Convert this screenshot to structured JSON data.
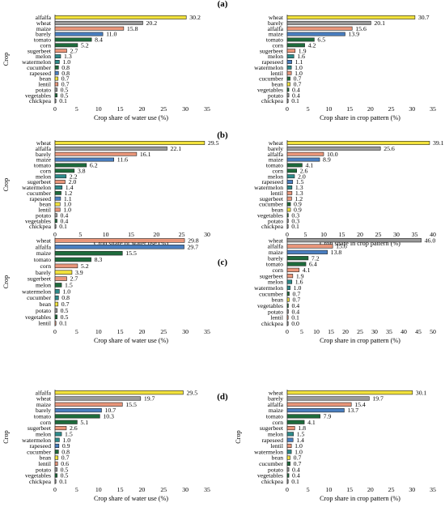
{
  "panel_labels": [
    "(a)",
    "(b)",
    "(c)",
    "(d)"
  ],
  "colors": {
    "yellow": "#f2e23c",
    "salmon": "#e9967a",
    "blue": "#4a7fc1",
    "green": "#1e6b3c",
    "grey": "#9a9a9a",
    "teal": "#2e8b8b",
    "edge": "#222222"
  },
  "chart_data": [
    {
      "panel": "(a)",
      "side": "left",
      "type": "bar",
      "orientation": "horizontal",
      "xlabel": "Crop share of water use (%)",
      "ylabel": "Crop",
      "xlim": [
        0,
        35
      ],
      "xticks": [
        0,
        5,
        10,
        15,
        20,
        25,
        30,
        35
      ],
      "categories": [
        "alfalfa",
        "wheat",
        "maize",
        "barely",
        "tomato",
        "corn",
        "sugerbeet",
        "melon",
        "watermelon",
        "cucumber",
        "rapeseed",
        "bean",
        "lentil",
        "potato",
        "vegetables",
        "chickpea"
      ],
      "values": [
        30.2,
        20.2,
        15.8,
        11.0,
        8.4,
        5.2,
        2.7,
        1.3,
        1.0,
        0.8,
        0.8,
        0.7,
        0.7,
        0.5,
        0.5,
        0.1
      ],
      "data_labels": [
        "30.2",
        "20.2",
        "15.8",
        "11.0",
        "8.4",
        "5.2",
        "2.7",
        "1.3",
        "1.0",
        "0.8",
        "0.8",
        "0.7",
        "0.7",
        "0.5",
        "0.5",
        "0.1"
      ],
      "bar_colors": [
        "yellow",
        "grey",
        "salmon",
        "blue",
        "green",
        "green",
        "salmon",
        "teal",
        "teal",
        "green",
        "blue",
        "yellow",
        "salmon",
        "grey",
        "green",
        "grey"
      ]
    },
    {
      "panel": "(a)",
      "side": "right",
      "type": "bar",
      "orientation": "horizontal",
      "xlabel": "Crop share in crop pattern (%)",
      "ylabel": "",
      "xlim": [
        0,
        35
      ],
      "xticks": [
        0,
        5,
        10,
        15,
        20,
        25,
        30,
        35
      ],
      "categories": [
        "wheat",
        "barely",
        "alfalfa",
        "maize",
        "tomato",
        "corn",
        "sugerbeet",
        "melon",
        "rapeseed",
        "watermelon",
        "lentil",
        "cucumber",
        "bean",
        "vegetables",
        "potato",
        "chickpea"
      ],
      "values": [
        30.7,
        20.1,
        15.6,
        13.9,
        6.5,
        4.2,
        1.9,
        1.6,
        1.1,
        1.0,
        1.0,
        0.7,
        0.7,
        0.4,
        0.4,
        0.1
      ],
      "data_labels": [
        "30.7",
        "20.1",
        "15.6",
        "13.9",
        "6.5",
        "4.2",
        "1.9",
        "1.6",
        "1.1",
        "1.0",
        "1.0",
        "0.7",
        "0.7",
        "0.4",
        "0.4",
        "0.1"
      ],
      "bar_colors": [
        "yellow",
        "grey",
        "salmon",
        "blue",
        "green",
        "green",
        "salmon",
        "teal",
        "blue",
        "teal",
        "salmon",
        "green",
        "yellow",
        "green",
        "grey",
        "grey"
      ]
    },
    {
      "panel": "(b)",
      "side": "left",
      "type": "bar",
      "orientation": "horizontal",
      "xlabel": "Crop share of water use (%)",
      "ylabel": "Crop",
      "xlim": [
        0,
        30
      ],
      "xticks": [
        0,
        5,
        10,
        15,
        20,
        25,
        30
      ],
      "categories": [
        "wheat",
        "alfalfa",
        "barely",
        "maize",
        "tomato",
        "corn",
        "melon",
        "sugerbeet",
        "watermelon",
        "cucumber",
        "rapeseed",
        "bean",
        "lentil",
        "potato",
        "vegetables",
        "chickpea"
      ],
      "values": [
        29.5,
        22.1,
        16.1,
        11.6,
        6.2,
        3.8,
        2.2,
        2.0,
        1.4,
        1.2,
        1.1,
        1.0,
        1.0,
        0.4,
        0.4,
        0.1
      ],
      "data_labels": [
        "29.5",
        "22.1",
        "16.1",
        "11.6",
        "6.2",
        "3.8",
        "2.2",
        "2.0",
        "1.4",
        "1.2",
        "1.1",
        "1.0",
        "1.0",
        "0.4",
        "0.4",
        "0.1"
      ],
      "bar_colors": [
        "yellow",
        "grey",
        "salmon",
        "blue",
        "green",
        "green",
        "teal",
        "salmon",
        "teal",
        "green",
        "blue",
        "yellow",
        "salmon",
        "grey",
        "green",
        "grey"
      ]
    },
    {
      "panel": "(b)",
      "side": "right",
      "type": "bar",
      "orientation": "horizontal",
      "xlabel": "Crop share in crop pattern (%)",
      "ylabel": "",
      "xlim": [
        0,
        40
      ],
      "xticks": [
        0,
        5,
        10,
        15,
        20,
        25,
        30,
        35,
        40
      ],
      "categories": [
        "wheat",
        "barely",
        "alfalfa",
        "maize",
        "tomato",
        "corn",
        "melon",
        "rapeseed",
        "watermelon",
        "lentil",
        "sugerbeet",
        "cucumber",
        "bean",
        "vegetables",
        "potato",
        "chickpea"
      ],
      "values": [
        39.1,
        25.6,
        10.0,
        8.9,
        4.1,
        2.6,
        2.0,
        1.5,
        1.3,
        1.3,
        1.2,
        0.9,
        0.9,
        0.3,
        0.3,
        0.1
      ],
      "data_labels": [
        "39.1",
        "25.6",
        "10.0",
        "8.9",
        "4.1",
        "2.6",
        "2.0",
        "1.5",
        "1.3",
        "1.3",
        "1.2",
        "0.9",
        "0.9",
        "0.3",
        "0.3",
        "0.1"
      ],
      "bar_colors": [
        "yellow",
        "grey",
        "salmon",
        "blue",
        "green",
        "green",
        "teal",
        "blue",
        "teal",
        "salmon",
        "salmon",
        "green",
        "yellow",
        "green",
        "grey",
        "grey"
      ]
    },
    {
      "panel": "(c)",
      "side": "left",
      "type": "bar",
      "orientation": "horizontal",
      "xlabel": "Crop share of water use (%)",
      "ylabel": "Crop",
      "xlim": [
        0,
        35
      ],
      "xticks": [
        0,
        5,
        10,
        15,
        20,
        25,
        30,
        35
      ],
      "categories": [
        "wheat",
        "alfalfa",
        "maize",
        "tomato",
        "corn",
        "barely",
        "sugerbeet",
        "melon",
        "watermelon",
        "cucumber",
        "bean",
        "potato",
        "vegetables",
        "lentil"
      ],
      "values": [
        29.8,
        29.7,
        15.5,
        8.3,
        5.2,
        3.9,
        2.7,
        1.5,
        1.0,
        0.8,
        0.7,
        0.5,
        0.5,
        0.1
      ],
      "data_labels": [
        "29.8",
        "29.7",
        "15.5",
        "8.3",
        "5.2",
        "3.9",
        "2.7",
        "1.5",
        "1.0",
        "0.8",
        "0.7",
        "0.5",
        "0.5",
        "0.1"
      ],
      "bar_colors": [
        "salmon",
        "blue",
        "green",
        "green",
        "salmon",
        "yellow",
        "salmon",
        "green",
        "teal",
        "teal",
        "yellow",
        "grey",
        "green",
        "salmon"
      ]
    },
    {
      "panel": "(c)",
      "side": "right",
      "type": "bar",
      "orientation": "horizontal",
      "xlabel": "Crop share in crop pattern (%)",
      "ylabel": "",
      "xlim": [
        0,
        50
      ],
      "xticks": [
        0,
        5,
        10,
        15,
        20,
        25,
        30,
        35,
        40,
        45,
        50
      ],
      "categories": [
        "wheat",
        "alfalfa",
        "maize",
        "barely",
        "tomato",
        "corn",
        "sugerbeet",
        "melon",
        "watermelon",
        "cucumber",
        "bean",
        "vegetables",
        "potato",
        "lentil",
        "chickpea"
      ],
      "values": [
        46.0,
        15.6,
        13.8,
        7.2,
        6.4,
        4.1,
        1.9,
        1.6,
        1.0,
        0.7,
        0.7,
        0.4,
        0.4,
        0.1,
        0.0
      ],
      "data_labels": [
        "46.0",
        "15.6",
        "13.8",
        "7.2",
        "6.4",
        "4.1",
        "1.9",
        "1.6",
        "1.0",
        "0.7",
        "0.7",
        "0.4",
        "0.4",
        "0.1",
        "0.0"
      ],
      "bar_colors": [
        "grey",
        "salmon",
        "blue",
        "green",
        "green",
        "salmon",
        "salmon",
        "teal",
        "teal",
        "green",
        "yellow",
        "green",
        "grey",
        "salmon",
        "grey"
      ]
    },
    {
      "panel": "(d)",
      "side": "left",
      "type": "bar",
      "orientation": "horizontal",
      "xlabel": "Crop share of water use (%)",
      "ylabel": "Crop",
      "xlim": [
        0,
        35
      ],
      "xticks": [
        0,
        5,
        10,
        15,
        20,
        25,
        30,
        35
      ],
      "categories": [
        "alfalfa",
        "wheat",
        "maize",
        "barely",
        "tomato",
        "corn",
        "sugerbeet",
        "melon",
        "watermelon",
        "rapeseed",
        "cucumber",
        "bean",
        "lentil",
        "potato",
        "vegetables",
        "chickpea"
      ],
      "values": [
        29.5,
        19.7,
        15.5,
        10.7,
        10.3,
        5.1,
        2.6,
        1.5,
        1.0,
        0.9,
        0.8,
        0.7,
        0.6,
        0.5,
        0.5,
        0.1
      ],
      "data_labels": [
        "29.5",
        "19.7",
        "15.5",
        "10.7",
        "10.3",
        "5.1",
        "2.6",
        "1.5",
        "1.0",
        "0.9",
        "0.8",
        "0.7",
        "0.6",
        "0.5",
        "0.5",
        "0.1"
      ],
      "bar_colors": [
        "yellow",
        "grey",
        "salmon",
        "blue",
        "green",
        "green",
        "salmon",
        "teal",
        "teal",
        "blue",
        "green",
        "yellow",
        "salmon",
        "grey",
        "green",
        "grey"
      ]
    },
    {
      "panel": "(d)",
      "side": "right",
      "type": "bar",
      "orientation": "horizontal",
      "xlabel": "Crop share in crop pattern (%)",
      "ylabel": "Crop",
      "xlim": [
        0,
        35
      ],
      "xticks": [
        0,
        5,
        10,
        15,
        20,
        25,
        30,
        35
      ],
      "categories": [
        "wheat",
        "barely",
        "alfalfa",
        "maize",
        "tomato",
        "corn",
        "sugerbeet",
        "melon",
        "rapeseed",
        "lentil",
        "watermelon",
        "bean",
        "cucumber",
        "potato",
        "vegetables",
        "chickpea"
      ],
      "values": [
        30.1,
        19.7,
        15.4,
        13.7,
        7.9,
        4.1,
        1.8,
        1.5,
        1.4,
        1.0,
        1.0,
        0.7,
        0.7,
        0.4,
        0.4,
        0.1
      ],
      "data_labels": [
        "30.1",
        "19.7",
        "15.4",
        "13.7",
        "7.9",
        "4.1",
        "1.8",
        "1.5",
        "1.4",
        "1.0",
        "1.0",
        "0.7",
        "0.7",
        "0.4",
        "0.4",
        "0.1"
      ],
      "bar_colors": [
        "yellow",
        "grey",
        "salmon",
        "blue",
        "green",
        "green",
        "salmon",
        "teal",
        "blue",
        "salmon",
        "teal",
        "yellow",
        "green",
        "grey",
        "green",
        "grey"
      ]
    }
  ]
}
